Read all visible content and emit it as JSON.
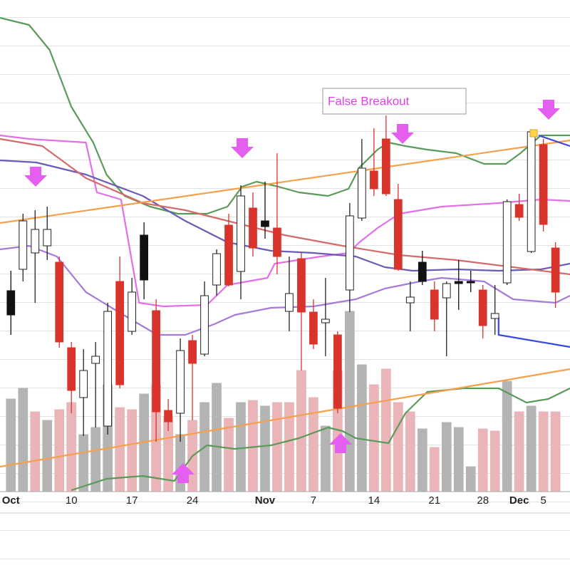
{
  "chart_data": {
    "type": "candlestick",
    "annotation": "False Breakout",
    "categories": [
      "Oct",
      null,
      null,
      null,
      null,
      "10",
      null,
      null,
      null,
      null,
      "17",
      null,
      null,
      null,
      null,
      "24",
      null,
      null,
      null,
      null,
      null,
      "Nov",
      null,
      null,
      null,
      "7",
      null,
      null,
      null,
      null,
      "14",
      null,
      null,
      null,
      null,
      "21",
      null,
      null,
      null,
      "28",
      null,
      null,
      "Dec",
      null,
      "5",
      null
    ],
    "open": [
      282,
      312,
      335,
      345,
      322,
      202,
      132,
      180,
      92,
      295,
      225,
      360,
      254,
      114,
      110,
      212,
      193,
      290,
      374,
      309,
      398,
      380,
      370,
      253,
      327,
      252,
      237,
      220,
      283,
      384,
      450,
      495,
      410,
      265,
      322,
      283,
      272,
      295,
      295,
      283,
      243,
      293,
      403,
      337,
      487,
      342
    ],
    "high": [
      310,
      390,
      395,
      400,
      330,
      210,
      200,
      210,
      265,
      330,
      300,
      378,
      270,
      130,
      215,
      220,
      295,
      340,
      390,
      430,
      420,
      435,
      475,
      330,
      335,
      270,
      300,
      225,
      405,
      495,
      510,
      528,
      432,
      295,
      338,
      295,
      295,
      325,
      310,
      290,
      290,
      410,
      418,
      507,
      495,
      350
    ],
    "low": [
      220,
      295,
      265,
      325,
      202,
      110,
      78,
      90,
      80,
      145,
      220,
      270,
      70,
      85,
      70,
      100,
      190,
      275,
      288,
      270,
      330,
      355,
      305,
      225,
      170,
      200,
      190,
      110,
      252,
      380,
      415,
      415,
      310,
      225,
      290,
      225,
      190,
      255,
      280,
      215,
      220,
      290,
      380,
      335,
      365,
      258
    ],
    "close": [
      248,
      380,
      368,
      368,
      210,
      142,
      170,
      190,
      253,
      150,
      280,
      297,
      112,
      98,
      198,
      180,
      275,
      334,
      290,
      415,
      342,
      372,
      330,
      278,
      252,
      207,
      242,
      117,
      387,
      454,
      425,
      418,
      312,
      273,
      295,
      242,
      292,
      292,
      293,
      233,
      250,
      407,
      385,
      505,
      375,
      280
    ],
    "colors": [
      "#111111",
      "#ffffff",
      "#ffffff",
      "#ffffff",
      "#d9342b",
      "#d9342b",
      "#ffffff",
      "#ffffff",
      "#ffffff",
      "#d9342b",
      "#ffffff",
      "#111111",
      "#d9342b",
      "#d9342b",
      "#ffffff",
      "#d9342b",
      "#ffffff",
      "#ffffff",
      "#d9342b",
      "#ffffff",
      "#d9342b",
      "#111111",
      "#d9342b",
      "#ffffff",
      "#d9342b",
      "#d9342b",
      "#ffffff",
      "#d9342b",
      "#ffffff",
      "#ffffff",
      "#d9342b",
      "#d9342b",
      "#d9342b",
      "#ffffff",
      "#111111",
      "#d9342b",
      "#ffffff",
      "#111111",
      "#111111",
      "#d9342b",
      "#ffffff",
      "#ffffff",
      "#d9342b",
      "#ffffff",
      "#d9342b",
      "#d9342b"
    ],
    "volume": {
      "axis": "y2",
      "values": [
        130,
        145,
        112,
        100,
        115,
        125,
        80,
        90,
        150,
        118,
        115,
        137,
        150,
        105,
        80,
        100,
        125,
        152,
        103,
        125,
        128,
        120,
        125,
        125,
        170,
        132,
        92,
        170,
        253,
        178,
        150,
        172,
        125,
        112,
        88,
        62,
        97,
        90,
        35,
        88,
        85,
        155,
        112,
        120,
        112,
        112
      ],
      "colors": [
        "#b4b4b4",
        "#b4b4b4",
        "#e9b5b9",
        "#b4b4b4",
        "#e9b5b9",
        "#e9b5b9",
        "#b4b4b4",
        "#b4b4b4",
        "#b4b4b4",
        "#e9b5b9",
        "#e9b5b9",
        "#b4b4b4",
        "#e9b5b9",
        "#e9b5b9",
        "#b4b4b4",
        "#e9b5b9",
        "#b4b4b4",
        "#b4b4b4",
        "#e9b5b9",
        "#b4b4b4",
        "#e9b5b9",
        "#b4b4b4",
        "#e9b5b9",
        "#e9b5b9",
        "#e9b5b9",
        "#e9b5b9",
        "#b4b4b4",
        "#e9b5b9",
        "#b4b4b4",
        "#b4b4b4",
        "#e9b5b9",
        "#e9b5b9",
        "#e9b5b9",
        "#e9b5b9",
        "#b4b4b4",
        "#e9b5b9",
        "#b4b4b4",
        "#b4b4b4",
        "#b4b4b4",
        "#e9b5b9",
        "#e9b5b9",
        "#b4b4b4",
        "#e9b5b9",
        "#b4b4b4",
        "#e9b5b9",
        "#e9b5b9"
      ]
    },
    "xlim": [
      -0.9,
      46.2
    ],
    "ylim": [
      0,
      690
    ],
    "y2lim": [
      0,
      690
    ],
    "overlays": [
      {
        "color": "#5a9a5a",
        "x": [
          -0.9,
          1.5,
          3.2,
          5,
          6.8,
          7.9,
          9.4,
          11.5,
          13.8,
          16.2,
          17.9,
          19.1,
          20.3,
          22.1,
          23.8,
          26.2,
          27.9,
          28.8,
          30.3,
          31.2,
          32.6,
          34.4,
          36.8,
          39.1,
          40.9,
          42.1,
          43.8,
          46.2
        ],
        "values": [
          665,
          655,
          620,
          540,
          490,
          445,
          415,
          400,
          390,
          390,
          400,
          428,
          435,
          428,
          420,
          415,
          425,
          455,
          480,
          490,
          485,
          480,
          475,
          460,
          460,
          475,
          500,
          500
        ]
      },
      {
        "color": "#5a9a5a",
        "x": [
          5,
          7.9,
          10.9,
          13.5,
          15,
          16.2,
          18.5,
          21.5,
          23.8,
          26.2,
          27.4,
          28.5,
          31.2,
          32.6,
          34.4,
          37.4,
          40.3,
          42.6,
          44.4,
          46.2
        ],
        "values": [
          2,
          18,
          22,
          15,
          50,
          65,
          60,
          65,
          75,
          90,
          85,
          75,
          68,
          110,
          140,
          145,
          145,
          125,
          130,
          145
        ]
      },
      {
        "color": "#e36fe8",
        "x": [
          -0.9,
          1.5,
          6.2,
          7.1,
          9.1,
          10.6,
          12.6,
          16.2,
          17.9,
          21.2,
          21.8,
          25.6,
          27.9,
          28.8,
          30.3,
          32.1,
          35.6,
          40.3,
          43.8,
          46.2
        ],
        "values": [
          500,
          495,
          490,
          420,
          410,
          265,
          260,
          262,
          290,
          300,
          320,
          330,
          335,
          350,
          370,
          390,
          400,
          405,
          410,
          408
        ]
      },
      {
        "color": "#6a5bb8",
        "x": [
          -0.9,
          2.1,
          6.2,
          10.9,
          14.4,
          17.9,
          21.5,
          25,
          28.5,
          30.9,
          33.2,
          36.8,
          40.3,
          43.8,
          46.2
        ],
        "values": [
          465,
          462,
          445,
          415,
          380,
          350,
          338,
          335,
          330,
          315,
          310,
          312,
          310,
          312,
          320
        ]
      },
      {
        "color": "#d46a6a",
        "x": [
          -0.9,
          2.6,
          6.2,
          10.9,
          14.4,
          17.9,
          22.6,
          27.4,
          32.1,
          36.8,
          41.5,
          46.2
        ],
        "values": [
          495,
          485,
          440,
          405,
          395,
          380,
          360,
          345,
          332,
          325,
          315,
          305
        ]
      },
      {
        "color": "#a57ad8",
        "x": [
          -0.9,
          1.5,
          3.8,
          6.2,
          9.1,
          12.1,
          14.4,
          16.8,
          18.5,
          21.5,
          25,
          28.5,
          30.9,
          33.8,
          35.6,
          39.1,
          41.5,
          45,
          46.2
        ],
        "values": [
          340,
          345,
          330,
          280,
          250,
          220,
          220,
          235,
          248,
          258,
          260,
          270,
          285,
          295,
          300,
          295,
          270,
          265,
          275
        ]
      },
      {
        "color": "#f5a04a",
        "x": [
          -0.9,
          46.2
        ],
        "values": [
          377,
          493
        ]
      },
      {
        "color": "#f5a04a",
        "x": [
          -0.9,
          46.2
        ],
        "values": [
          35,
          172
        ]
      },
      {
        "color": "#3a48e0",
        "x": [
          43.6,
          46.2
        ],
        "values": [
          500,
          485
        ]
      },
      {
        "color": "#3a48e0",
        "x": [
          40.3,
          40.3,
          46.2
        ],
        "values": [
          245,
          220,
          203
        ]
      }
    ]
  }
}
